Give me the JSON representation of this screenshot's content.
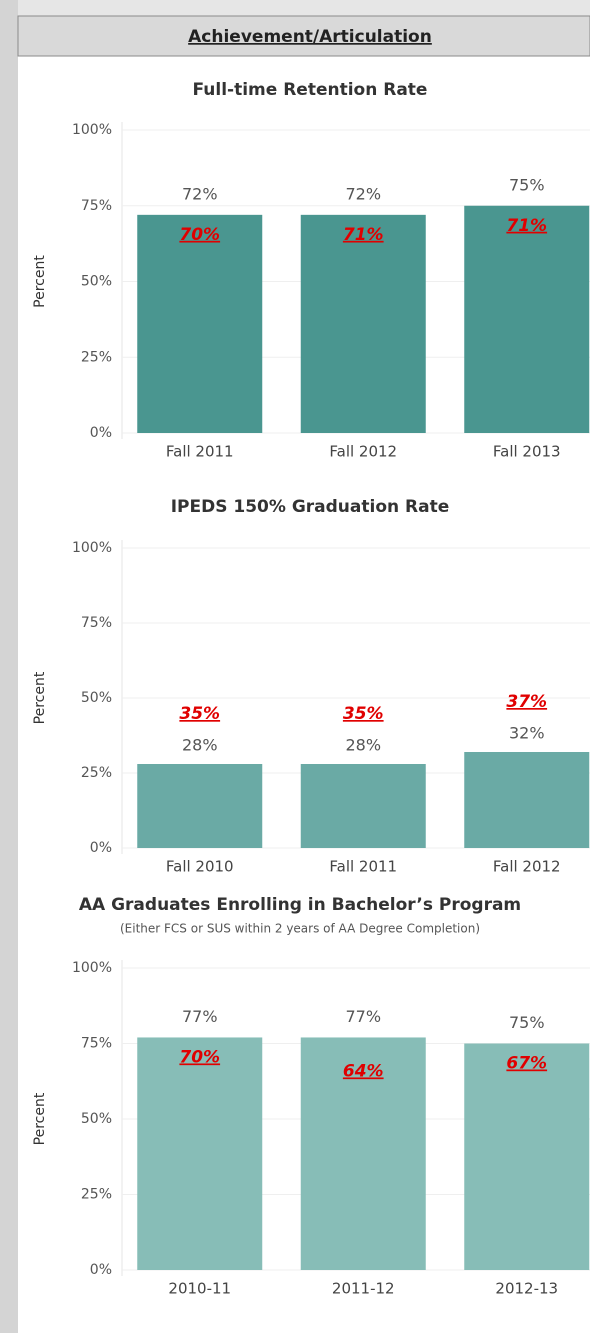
{
  "header": {
    "title": "Achievement/Articulation"
  },
  "chart_data": [
    {
      "type": "bar",
      "title": "Full-time Retention Rate",
      "ylabel": "Percent",
      "categories": [
        "Fall 2011",
        "Fall 2012",
        "Fall 2013"
      ],
      "values": [
        72,
        72,
        75
      ],
      "value_labels": [
        "72%",
        "72%",
        "75%"
      ],
      "annotations": [
        "70%",
        "71%",
        "71%"
      ],
      "annotation_color": "#e00000",
      "color": "#4a9690",
      "ylim": [
        0,
        100
      ],
      "yticks": [
        {
          "value": 0,
          "label": "0%"
        },
        {
          "value": 25,
          "label": "25%"
        },
        {
          "value": 50,
          "label": "50%"
        },
        {
          "value": 75,
          "label": "75%"
        },
        {
          "value": 100,
          "label": "100%"
        }
      ],
      "grid": true
    },
    {
      "type": "bar",
      "title": "IPEDS 150% Graduation Rate",
      "ylabel": "Percent",
      "categories": [
        "Fall 2010",
        "Fall 2011",
        "Fall 2012"
      ],
      "values": [
        28,
        28,
        32
      ],
      "value_labels": [
        "28%",
        "28%",
        "32%"
      ],
      "annotations": [
        "35%",
        "35%",
        "37%"
      ],
      "annotation_color": "#e00000",
      "color": "#6aaaa5",
      "ylim": [
        0,
        100
      ],
      "yticks": [
        {
          "value": 0,
          "label": "0%"
        },
        {
          "value": 25,
          "label": "25%"
        },
        {
          "value": 50,
          "label": "50%"
        },
        {
          "value": 75,
          "label": "75%"
        },
        {
          "value": 100,
          "label": "100%"
        }
      ],
      "grid": true
    },
    {
      "type": "bar",
      "title": "AA Graduates Enrolling in Bachelor’s  Program",
      "subtitle": "(Either FCS or SUS within 2 years of AA Degree Completion)",
      "ylabel": "Percent",
      "categories": [
        "2010-11",
        "2011-12",
        "2012-13"
      ],
      "values": [
        77,
        77,
        75
      ],
      "value_labels": [
        "77%",
        "77%",
        "75%"
      ],
      "annotations": [
        "70%",
        "64%",
        "67%"
      ],
      "annotation_color": "#e00000",
      "color": "#87bdb7",
      "ylim": [
        0,
        100
      ],
      "yticks": [
        {
          "value": 0,
          "label": "0%"
        },
        {
          "value": 25,
          "label": "25%"
        },
        {
          "value": 50,
          "label": "50%"
        },
        {
          "value": 75,
          "label": "75%"
        },
        {
          "value": 100,
          "label": "100%"
        }
      ],
      "grid": true
    }
  ]
}
